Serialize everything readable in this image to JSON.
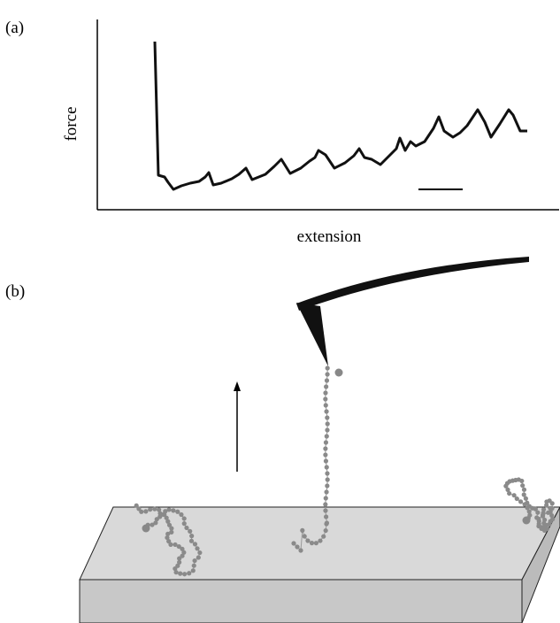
{
  "panel_a": {
    "label": "(a)",
    "y_axis_label": "force",
    "x_axis_label": "extension"
  },
  "panel_b": {
    "label": "(b)"
  }
}
